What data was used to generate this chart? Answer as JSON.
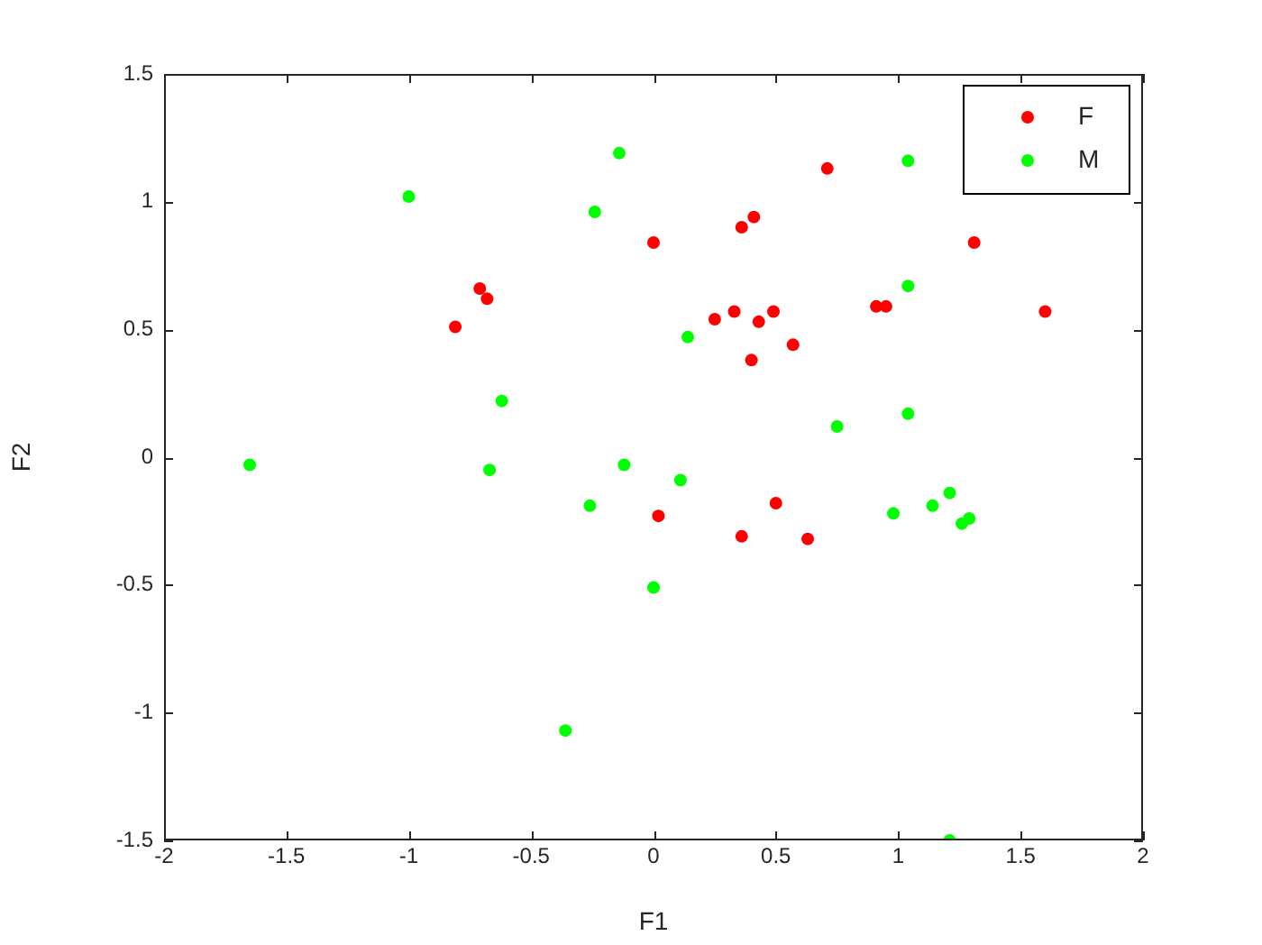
{
  "chart_data": {
    "type": "scatter",
    "xlabel": "F1",
    "ylabel": "F2",
    "xlim": [
      -2,
      2
    ],
    "ylim": [
      -1.5,
      1.5
    ],
    "xticks": [
      -2,
      -1.5,
      -1,
      -0.5,
      0,
      0.5,
      1,
      1.5,
      2
    ],
    "yticks": [
      -1.5,
      -1,
      -0.5,
      0,
      0.5,
      1,
      1.5
    ],
    "grid": false,
    "legend": "top right",
    "marker": "circle",
    "series": [
      {
        "name": "F",
        "color": "#ff0000",
        "x": [
          -0.81,
          -0.71,
          -0.68,
          0,
          0.36,
          0.41,
          0.71,
          1.31,
          0.25,
          0.33,
          0.43,
          0.49,
          0.57,
          0.4,
          0.91,
          0.95,
          1.6,
          0.02,
          0.5,
          0.36,
          0.63
        ],
        "values": [
          0.51,
          0.66,
          0.62,
          0.84,
          0.9,
          0.94,
          1.13,
          0.84,
          0.54,
          0.57,
          0.53,
          0.57,
          0.44,
          0.38,
          0.59,
          0.59,
          0.57,
          -0.23,
          -0.18,
          -0.31,
          -0.32
        ]
      },
      {
        "name": "M",
        "color": "#00ff00",
        "x": [
          -1,
          -0.14,
          -0.24,
          1.04,
          0.14,
          1.04,
          -0.62,
          1.04,
          0.75,
          -1.65,
          -0.67,
          -0.12,
          0.11,
          -0.26,
          0.98,
          1.14,
          1.21,
          1.26,
          1.29,
          0,
          -0.36,
          1.21
        ],
        "values": [
          1.02,
          1.19,
          0.96,
          1.16,
          0.47,
          0.67,
          0.22,
          0.17,
          0.12,
          -0.03,
          -0.05,
          -0.03,
          -0.09,
          -0.19,
          -0.22,
          -0.19,
          -0.14,
          -0.26,
          -0.24,
          -0.51,
          -1.07,
          -1.5
        ]
      }
    ]
  }
}
